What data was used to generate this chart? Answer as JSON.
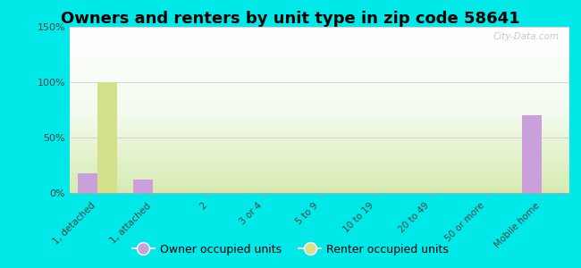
{
  "title": "Owners and renters by unit type in zip code 58641",
  "categories": [
    "1, detached",
    "1, attached",
    "2",
    "3 or 4",
    "5 to 9",
    "10 to 19",
    "20 to 49",
    "50 or more",
    "Mobile home"
  ],
  "owner_values": [
    18,
    12,
    0,
    0,
    0,
    0,
    0,
    0,
    70
  ],
  "renter_values": [
    100,
    0,
    0,
    0,
    0,
    0,
    0,
    0,
    0
  ],
  "owner_color": "#c9a0dc",
  "renter_color": "#d4e08a",
  "ylim": [
    0,
    150
  ],
  "yticks": [
    0,
    50,
    100,
    150
  ],
  "ytick_labels": [
    "0%",
    "50%",
    "100%",
    "150%"
  ],
  "background_outer": "#00e8e8",
  "background_inner_top": "#f0f8f0",
  "background_inner_bottom": "#d8ebb0",
  "title_fontsize": 13,
  "legend_owner": "Owner occupied units",
  "legend_renter": "Renter occupied units",
  "watermark": "City-Data.com",
  "bar_width": 0.35
}
